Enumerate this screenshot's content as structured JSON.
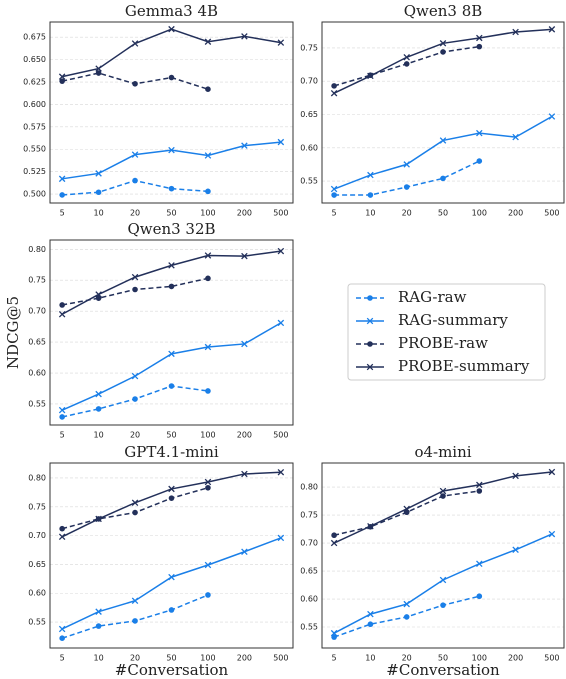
{
  "chart_data": [
    {
      "type": "line",
      "title": "Gemma3 4B",
      "categories": [
        "5",
        "10",
        "20",
        "50",
        "100",
        "200",
        "500"
      ],
      "ylim": [
        0.49,
        0.692
      ],
      "yticks": [
        {
          "value": 0.5,
          "label": "0.500"
        },
        0.525,
        {
          "value": 0.55,
          "label": "0.550"
        },
        0.575,
        {
          "value": 0.6,
          "label": "0.600"
        },
        0.625,
        {
          "value": 0.65,
          "label": "0.650"
        },
        0.675
      ],
      "grid": true,
      "series": [
        {
          "name": "RAG-raw",
          "color": "#1a7fe8",
          "linestyle": "dashed",
          "marker": "o",
          "values": [
            0.499,
            0.502,
            0.515,
            0.506,
            0.503,
            null,
            null
          ]
        },
        {
          "name": "RAG-summary",
          "color": "#1a7fe8",
          "linestyle": "solid",
          "marker": "x",
          "values": [
            0.517,
            0.523,
            0.544,
            0.549,
            0.543,
            0.554,
            0.558
          ]
        },
        {
          "name": "PROBE-raw",
          "color": "#23305a",
          "linestyle": "dashed",
          "marker": "o",
          "values": [
            0.626,
            0.635,
            0.623,
            0.63,
            0.617,
            null,
            null
          ]
        },
        {
          "name": "PROBE-summary",
          "color": "#23305a",
          "linestyle": "solid",
          "marker": "x",
          "values": [
            0.631,
            0.64,
            0.668,
            0.684,
            0.67,
            0.676,
            0.669
          ]
        }
      ]
    },
    {
      "type": "line",
      "title": "Qwen3 8B",
      "categories": [
        "5",
        "10",
        "20",
        "50",
        "100",
        "200",
        "500"
      ],
      "ylim": [
        0.517,
        0.789
      ],
      "yticks": [
        0.55,
        {
          "value": 0.6,
          "label": "0.60"
        },
        0.65,
        {
          "value": 0.7,
          "label": "0.70"
        },
        0.75
      ],
      "grid": true,
      "series": [
        {
          "name": "RAG-raw",
          "color": "#1a7fe8",
          "linestyle": "dashed",
          "marker": "o",
          "values": [
            0.529,
            0.529,
            0.541,
            0.554,
            0.58,
            null,
            null
          ]
        },
        {
          "name": "RAG-summary",
          "color": "#1a7fe8",
          "linestyle": "solid",
          "marker": "x",
          "values": [
            0.538,
            0.559,
            0.575,
            0.611,
            0.622,
            0.616,
            0.647
          ]
        },
        {
          "name": "PROBE-raw",
          "color": "#23305a",
          "linestyle": "dashed",
          "marker": "o",
          "values": [
            0.693,
            0.709,
            0.726,
            0.744,
            0.752,
            null,
            null
          ]
        },
        {
          "name": "PROBE-summary",
          "color": "#23305a",
          "linestyle": "solid",
          "marker": "x",
          "values": [
            0.682,
            0.708,
            0.736,
            0.757,
            0.765,
            0.774,
            0.778
          ]
        }
      ]
    },
    {
      "type": "line",
      "title": "Qwen3 32B",
      "ylabel": "NDCG@5",
      "categories": [
        "5",
        "10",
        "20",
        "50",
        "100",
        "200",
        "500"
      ],
      "ylim": [
        0.516,
        0.815
      ],
      "yticks": [
        0.55,
        {
          "value": 0.6,
          "label": "0.60"
        },
        0.65,
        {
          "value": 0.7,
          "label": "0.70"
        },
        0.75,
        {
          "value": 0.8,
          "label": "0.80"
        }
      ],
      "grid": true,
      "series": [
        {
          "name": "RAG-raw",
          "color": "#1a7fe8",
          "linestyle": "dashed",
          "marker": "o",
          "values": [
            0.529,
            0.542,
            0.558,
            0.579,
            0.571,
            null,
            null
          ]
        },
        {
          "name": "RAG-summary",
          "color": "#1a7fe8",
          "linestyle": "solid",
          "marker": "x",
          "values": [
            0.54,
            0.566,
            0.595,
            0.631,
            0.642,
            0.647,
            0.681
          ]
        },
        {
          "name": "PROBE-raw",
          "color": "#23305a",
          "linestyle": "dashed",
          "marker": "o",
          "values": [
            0.71,
            0.721,
            0.735,
            0.74,
            0.753,
            null,
            null
          ]
        },
        {
          "name": "PROBE-summary",
          "color": "#23305a",
          "linestyle": "solid",
          "marker": "x",
          "values": [
            0.695,
            0.727,
            0.755,
            0.774,
            0.79,
            0.789,
            0.797
          ]
        }
      ]
    },
    {
      "type": "line",
      "title": "GPT4.1-mini",
      "xlabel": "#Conversation",
      "categories": [
        "5",
        "10",
        "20",
        "50",
        "100",
        "200",
        "500"
      ],
      "ylim": [
        0.505,
        0.826
      ],
      "yticks": [
        0.55,
        {
          "value": 0.6,
          "label": "0.60"
        },
        0.65,
        {
          "value": 0.7,
          "label": "0.70"
        },
        0.75,
        {
          "value": 0.8,
          "label": "0.80"
        }
      ],
      "grid": true,
      "series": [
        {
          "name": "RAG-raw",
          "color": "#1a7fe8",
          "linestyle": "dashed",
          "marker": "o",
          "values": [
            0.522,
            0.543,
            0.552,
            0.571,
            0.597,
            null,
            null
          ]
        },
        {
          "name": "RAG-summary",
          "color": "#1a7fe8",
          "linestyle": "solid",
          "marker": "x",
          "values": [
            0.538,
            0.568,
            0.587,
            0.628,
            0.649,
            0.672,
            0.696
          ]
        },
        {
          "name": "PROBE-raw",
          "color": "#23305a",
          "linestyle": "dashed",
          "marker": "o",
          "values": [
            0.712,
            0.729,
            0.74,
            0.765,
            0.783,
            null,
            null
          ]
        },
        {
          "name": "PROBE-summary",
          "color": "#23305a",
          "linestyle": "solid",
          "marker": "x",
          "values": [
            0.698,
            0.729,
            0.757,
            0.781,
            0.793,
            0.807,
            0.81
          ]
        }
      ]
    },
    {
      "type": "line",
      "title": "o4-mini",
      "xlabel": "#Conversation",
      "categories": [
        "5",
        "10",
        "20",
        "50",
        "100",
        "200",
        "500"
      ],
      "ylim": [
        0.5125,
        0.843
      ],
      "yticks": [
        0.55,
        {
          "value": 0.6,
          "label": "0.60"
        },
        0.65,
        {
          "value": 0.7,
          "label": "0.70"
        },
        0.75,
        {
          "value": 0.8,
          "label": "0.80"
        }
      ],
      "grid": true,
      "series": [
        {
          "name": "RAG-raw",
          "color": "#1a7fe8",
          "linestyle": "dashed",
          "marker": "o",
          "values": [
            0.532,
            0.555,
            0.568,
            0.589,
            0.605,
            null,
            null
          ]
        },
        {
          "name": "RAG-summary",
          "color": "#1a7fe8",
          "linestyle": "solid",
          "marker": "x",
          "values": [
            0.539,
            0.573,
            0.591,
            0.634,
            0.663,
            0.688,
            0.716
          ]
        },
        {
          "name": "PROBE-raw",
          "color": "#23305a",
          "linestyle": "dashed",
          "marker": "o",
          "values": [
            0.714,
            0.729,
            0.755,
            0.784,
            0.793,
            null,
            null
          ]
        },
        {
          "name": "PROBE-summary",
          "color": "#23305a",
          "linestyle": "solid",
          "marker": "x",
          "values": [
            0.7,
            0.73,
            0.761,
            0.793,
            0.804,
            0.82,
            0.827
          ]
        }
      ]
    }
  ]
}
